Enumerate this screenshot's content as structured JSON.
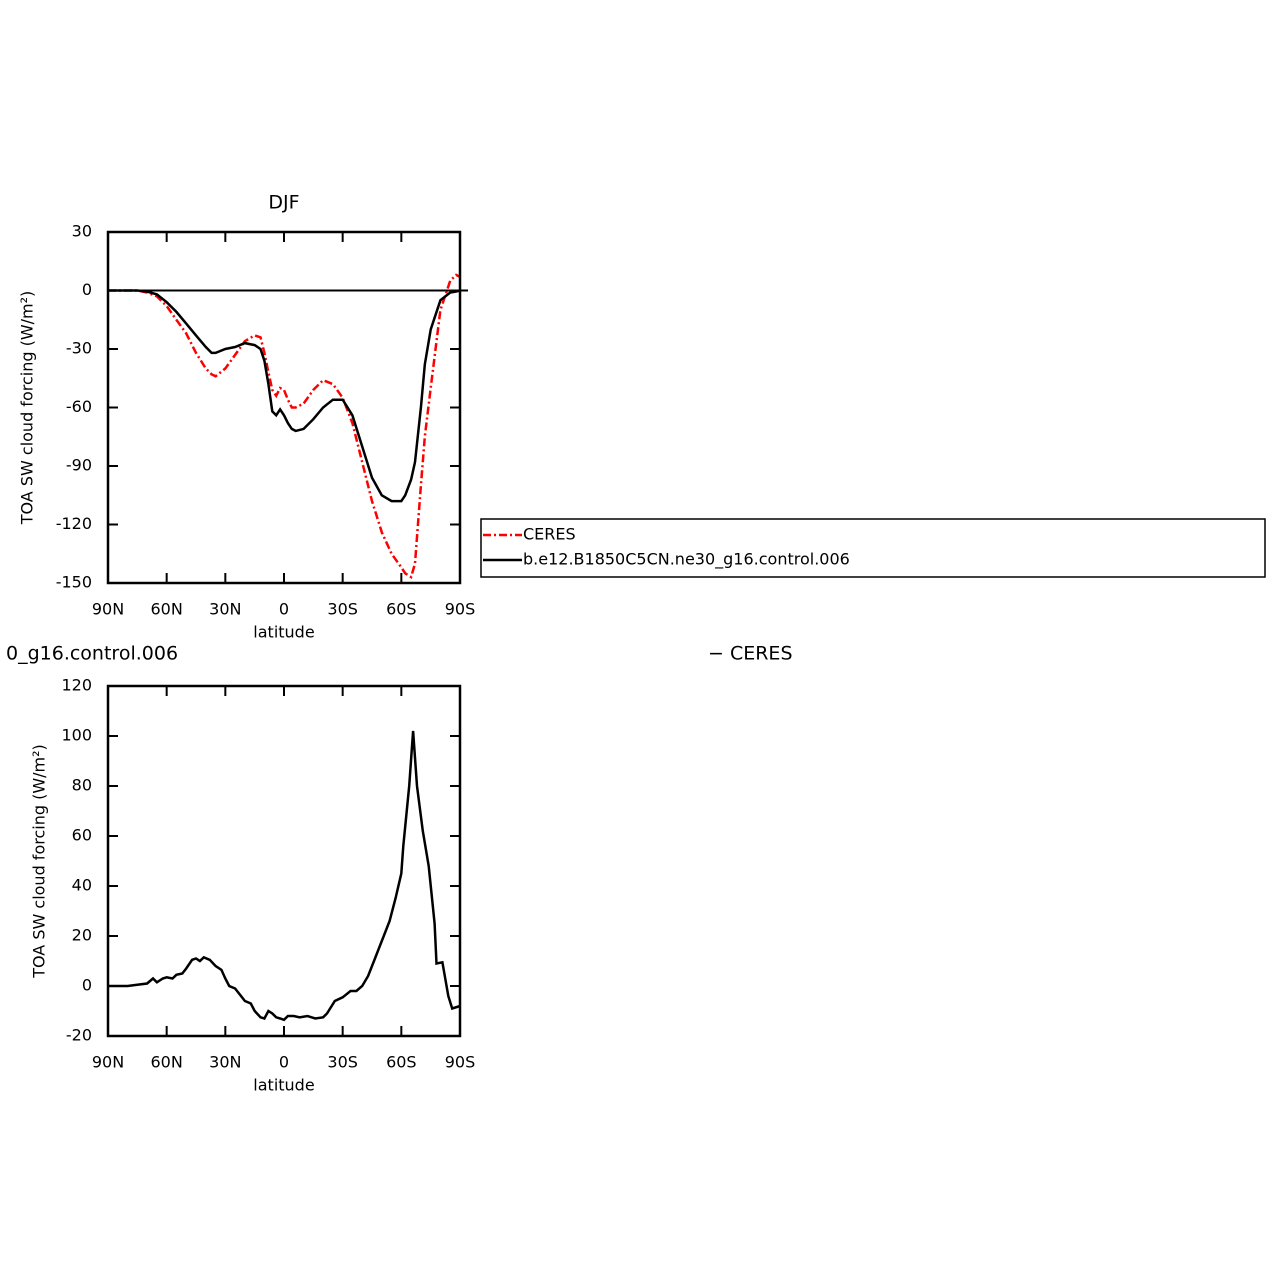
{
  "chart_data": [
    {
      "type": "line",
      "title": "DJF",
      "xlabel": "latitude",
      "ylabel": "TOA SW cloud forcing (W/m²)",
      "xlim": [
        90,
        -90
      ],
      "xticks": [
        {
          "value": 90,
          "label": "90N"
        },
        {
          "value": 60,
          "label": "60N"
        },
        {
          "value": 30,
          "label": "30N"
        },
        0,
        {
          "value": -30,
          "label": "30S"
        },
        {
          "value": -60,
          "label": "60S"
        },
        {
          "value": -90,
          "label": "90S"
        }
      ],
      "ylim": [
        -150,
        30
      ],
      "yticks": [
        30,
        0,
        -30,
        -60,
        -90,
        -120,
        -150
      ],
      "reference_line": 0,
      "legend": "right",
      "x": [
        90,
        85,
        80,
        75,
        70,
        65,
        60,
        55,
        50,
        45,
        40,
        37,
        35,
        30,
        25,
        20,
        15,
        12,
        10,
        8,
        6,
        4,
        2,
        0,
        -2,
        -4,
        -6,
        -10,
        -15,
        -20,
        -25,
        -30,
        -35,
        -40,
        -45,
        -50,
        -55,
        -60,
        -62,
        -65,
        -67,
        -70,
        -72,
        -75,
        -80,
        -85,
        -88,
        -90
      ],
      "series": [
        {
          "name": "CERES",
          "color": "#ff0000",
          "dashed": true,
          "values": [
            0,
            0,
            0,
            0,
            -1,
            -3,
            -8,
            -15,
            -22,
            -32,
            -40,
            -43,
            -44,
            -40,
            -33,
            -26,
            -23,
            -24,
            -32,
            -42,
            -51,
            -54,
            -50,
            -51,
            -56,
            -60,
            -60,
            -58,
            -51,
            -46,
            -48,
            -55,
            -68,
            -88,
            -108,
            -124,
            -135,
            -142,
            -145,
            -147,
            -140,
            -100,
            -75,
            -50,
            -10,
            5,
            8,
            7
          ]
        },
        {
          "name": "b.e12.B1850C5CN.ne30_g16.control.006",
          "color": "#000000",
          "dashed": false,
          "values": [
            0,
            0,
            0,
            0,
            -0.5,
            -2,
            -6,
            -11,
            -17,
            -23,
            -29,
            -32,
            -32,
            -30,
            -29,
            -27,
            -28,
            -30,
            -36,
            -48,
            -62,
            -64,
            -61,
            -64,
            -68,
            -71,
            -72,
            -71,
            -66,
            -60,
            -56,
            -56,
            -64,
            -80,
            -96,
            -105,
            -108,
            -108,
            -105,
            -97,
            -88,
            -60,
            -38,
            -20,
            -5,
            -1,
            -0.5,
            0
          ]
        }
      ]
    },
    {
      "type": "line",
      "title_left": "0_g16.control.006",
      "title_right": "− CERES",
      "xlabel": "latitude",
      "ylabel": "TOA SW cloud forcing (W/m²)",
      "xlim": [
        90,
        -90
      ],
      "xticks": [
        {
          "value": 90,
          "label": "90N"
        },
        {
          "value": 60,
          "label": "60N"
        },
        {
          "value": 30,
          "label": "30N"
        },
        0,
        {
          "value": -30,
          "label": "30S"
        },
        {
          "value": -60,
          "label": "60S"
        },
        {
          "value": -90,
          "label": "90S"
        }
      ],
      "ylim": [
        -20,
        120
      ],
      "yticks": [
        120,
        100,
        80,
        60,
        40,
        20,
        0,
        -20
      ],
      "x": [
        90,
        80,
        75,
        70,
        67,
        65,
        62,
        60,
        57,
        55,
        52,
        50,
        47,
        45,
        43,
        41,
        38,
        35,
        32,
        30,
        28,
        25,
        22,
        20,
        17,
        15,
        12,
        10,
        8,
        6,
        4,
        2,
        0,
        -2,
        -5,
        -8,
        -12,
        -16,
        -20,
        -22,
        -26,
        -30,
        -34,
        -37,
        -40,
        -43,
        -46,
        -50,
        -54,
        -57,
        -60,
        -61,
        -64,
        -66,
        -68,
        -71,
        -74,
        -77,
        -78,
        -81,
        -84,
        -86,
        -90
      ],
      "series": [
        {
          "color": "#000000",
          "values": [
            0,
            0,
            0.5,
            1,
            3,
            1.5,
            3,
            3.5,
            3,
            4.5,
            5,
            7,
            10.5,
            11,
            10,
            11.5,
            10.5,
            8,
            6.5,
            3,
            0,
            -1,
            -4,
            -6,
            -7,
            -10,
            -12.5,
            -13,
            -10,
            -11,
            -12.5,
            -13,
            -13.5,
            -12,
            -12,
            -12.5,
            -12,
            -13,
            -12.5,
            -11,
            -6,
            -4.5,
            -2,
            -2,
            0,
            4,
            10,
            18,
            26,
            35,
            45,
            56,
            80,
            102,
            80,
            62,
            48,
            25,
            9,
            9.5,
            -4,
            -9,
            -8
          ]
        }
      ]
    }
  ]
}
